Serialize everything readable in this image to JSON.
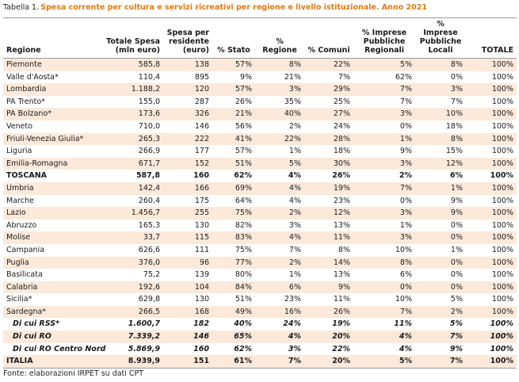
{
  "header": {
    "lead": "Tabella 1.",
    "title": "Spesa corrente per cultura e servizi ricreativi per regione e livello istituzionale. Anno 2021"
  },
  "table": {
    "columns": [
      "Regione",
      "Totale Spesa (mln euro)",
      "Spesa per residente (euro)",
      "% Stato",
      "% Regione",
      "% Comuni",
      "% Imprese Pubbliche Regionali",
      "% Imprese Pubbliche Locali",
      "TOTALE"
    ],
    "rows": [
      [
        "Piemonte",
        "585,8",
        "138",
        "57%",
        "8%",
        "22%",
        "5%",
        "8%",
        "100%"
      ],
      [
        "Valle d'Aosta*",
        "110,4",
        "895",
        "9%",
        "21%",
        "7%",
        "62%",
        "0%",
        "100%"
      ],
      [
        "Lombardia",
        "1.188,2",
        "120",
        "57%",
        "3%",
        "29%",
        "7%",
        "3%",
        "100%"
      ],
      [
        "PA Trento*",
        "155,0",
        "287",
        "26%",
        "35%",
        "25%",
        "7%",
        "7%",
        "100%"
      ],
      [
        "PA Bolzano*",
        "173,6",
        "326",
        "21%",
        "40%",
        "27%",
        "3%",
        "10%",
        "100%"
      ],
      [
        "Veneto",
        "710,0",
        "146",
        "56%",
        "2%",
        "24%",
        "0%",
        "18%",
        "100%"
      ],
      [
        "Friuli-Venezia Giulia*",
        "265,3",
        "222",
        "41%",
        "22%",
        "28%",
        "1%",
        "8%",
        "100%"
      ],
      [
        "Liguria",
        "266,9",
        "177",
        "57%",
        "1%",
        "18%",
        "9%",
        "15%",
        "100%"
      ],
      [
        "Emilia-Romagna",
        "671,7",
        "152",
        "51%",
        "5%",
        "30%",
        "3%",
        "12%",
        "100%"
      ],
      [
        "TOSCANA",
        "587,8",
        "160",
        "62%",
        "4%",
        "26%",
        "2%",
        "6%",
        "100%"
      ],
      [
        "Umbria",
        "142,4",
        "166",
        "69%",
        "4%",
        "19%",
        "7%",
        "1%",
        "100%"
      ],
      [
        "Marche",
        "260,4",
        "175",
        "64%",
        "4%",
        "23%",
        "0%",
        "9%",
        "100%"
      ],
      [
        "Lazio",
        "1.456,7",
        "255",
        "75%",
        "2%",
        "12%",
        "3%",
        "9%",
        "100%"
      ],
      [
        "Abruzzo",
        "165,3",
        "130",
        "82%",
        "3%",
        "13%",
        "1%",
        "0%",
        "100%"
      ],
      [
        "Molise",
        "33,7",
        "115",
        "83%",
        "4%",
        "11%",
        "3%",
        "0%",
        "100%"
      ],
      [
        "Campania",
        "626,6",
        "111",
        "75%",
        "7%",
        "8%",
        "10%",
        "1%",
        "100%"
      ],
      [
        "Puglia",
        "376,0",
        "96",
        "77%",
        "2%",
        "14%",
        "8%",
        "0%",
        "100%"
      ],
      [
        "Basilicata",
        "75,2",
        "139",
        "80%",
        "1%",
        "13%",
        "6%",
        "0%",
        "100%"
      ],
      [
        "Calabria",
        "192,6",
        "104",
        "84%",
        "6%",
        "9%",
        "0%",
        "0%",
        "100%"
      ],
      [
        "Sicilia*",
        "629,8",
        "130",
        "51%",
        "23%",
        "11%",
        "10%",
        "5%",
        "100%"
      ],
      [
        "Sardegna*",
        "266,5",
        "168",
        "49%",
        "16%",
        "26%",
        "7%",
        "2%",
        "100%"
      ],
      [
        "Di cui RSS*",
        "1.600,7",
        "182",
        "40%",
        "24%",
        "19%",
        "11%",
        "5%",
        "100%"
      ],
      [
        "Di cui RO",
        "7.339,2",
        "146",
        "65%",
        "4%",
        "20%",
        "4%",
        "7%",
        "100%"
      ],
      [
        "Di cui RO Centro Nord",
        "5.869,9",
        "160",
        "62%",
        "3%",
        "22%",
        "4%",
        "9%",
        "100%"
      ],
      [
        "ITALIA",
        "8.939,9",
        "151",
        "61%",
        "7%",
        "20%",
        "5%",
        "7%",
        "100%"
      ]
    ]
  },
  "footer": {
    "source": "Fonte: elaborazioni IRPET su dati CPT"
  }
}
